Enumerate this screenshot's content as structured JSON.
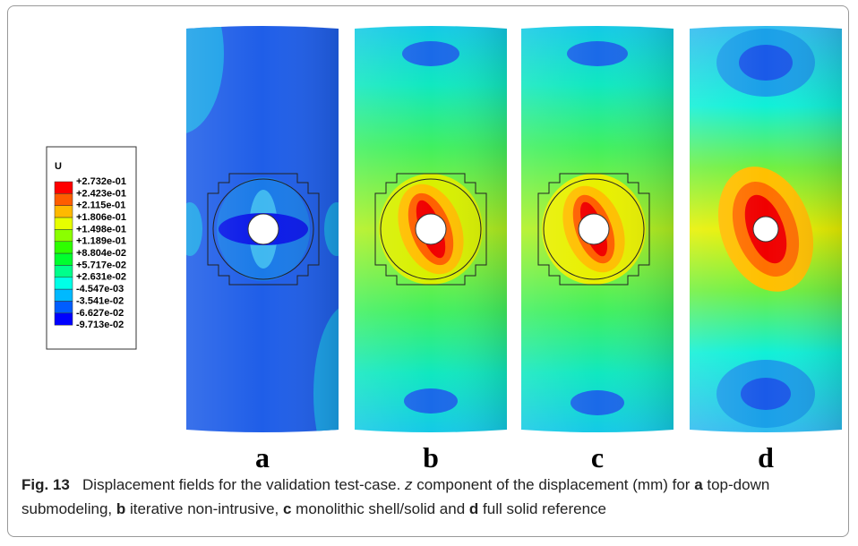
{
  "legend": {
    "title": "U",
    "labels": [
      "+2.732e-01",
      "+2.423e-01",
      "+2.115e-01",
      "+1.806e-01",
      "+1.498e-01",
      "+1.189e-01",
      "+8.804e-02",
      "+5.717e-02",
      "+2.631e-02",
      "-4.547e-03",
      "-3.541e-02",
      "-6.627e-02",
      "-9.713e-02"
    ],
    "colors": [
      "#ff0000",
      "#ff5d00",
      "#ffb900",
      "#e7ff00",
      "#8bff00",
      "#2eff00",
      "#00ff2e",
      "#00ff8b",
      "#00ffe7",
      "#00b9ff",
      "#005dff",
      "#0000ff"
    ]
  },
  "panels": [
    {
      "label": "a"
    },
    {
      "label": "b"
    },
    {
      "label": "c"
    },
    {
      "label": "d"
    }
  ],
  "caption": {
    "label": "Fig. 13",
    "segments": [
      "Displacement fields for the validation test-case. ",
      "z",
      " component of the displacement (mm) for ",
      "a",
      " top-down submodeling, ",
      "b",
      " iterative non-intrusive, ",
      "c",
      " monolithic shell/solid and ",
      "d",
      " full solid reference"
    ]
  }
}
